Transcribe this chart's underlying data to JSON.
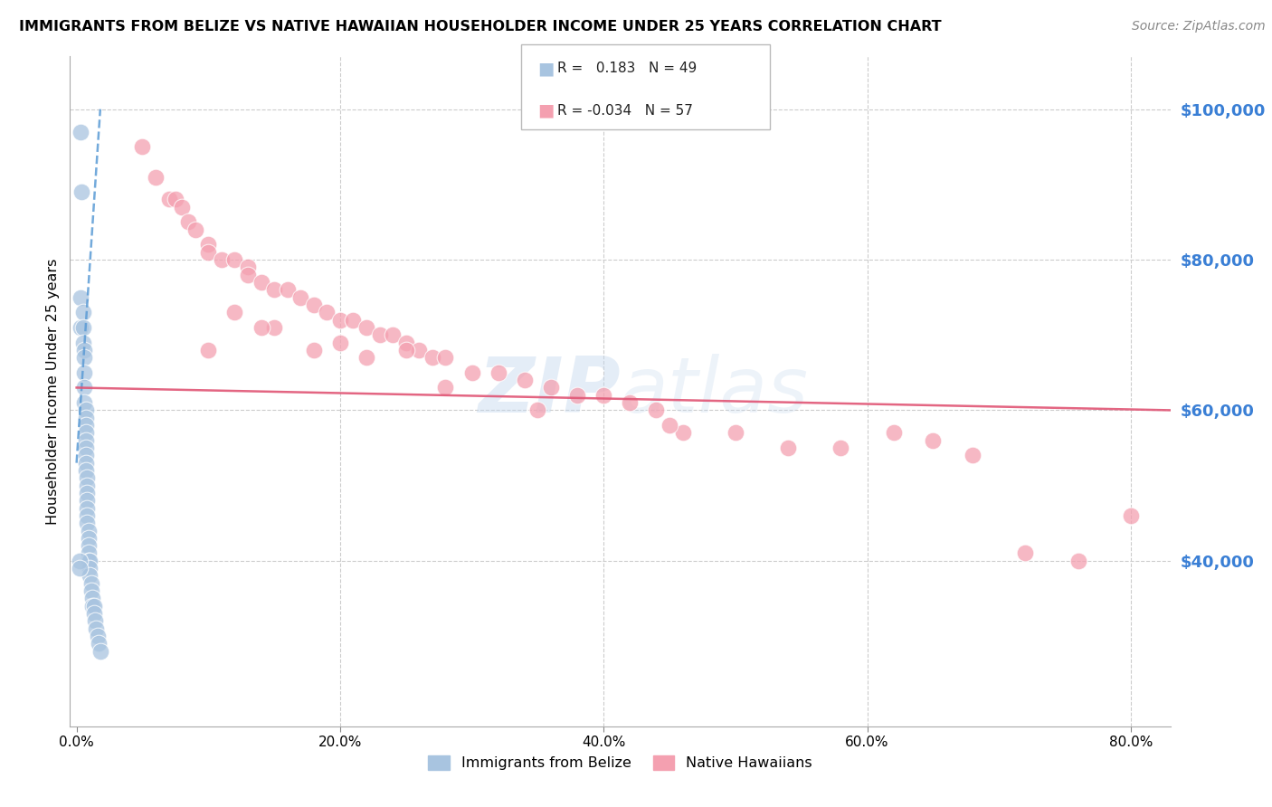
{
  "title": "IMMIGRANTS FROM BELIZE VS NATIVE HAWAIIAN HOUSEHOLDER INCOME UNDER 25 YEARS CORRELATION CHART",
  "source": "Source: ZipAtlas.com",
  "ylabel": "Householder Income Under 25 years",
  "xlabel_ticks": [
    "0.0%",
    "20.0%",
    "40.0%",
    "60.0%",
    "80.0%"
  ],
  "xlabel_vals": [
    0.0,
    0.2,
    0.4,
    0.6,
    0.8
  ],
  "ytick_labels": [
    "$40,000",
    "$60,000",
    "$80,000",
    "$100,000"
  ],
  "ytick_vals": [
    40000,
    60000,
    80000,
    100000
  ],
  "ylim": [
    18000,
    107000
  ],
  "xlim": [
    -0.005,
    0.83
  ],
  "legend_r_blue": "0.183",
  "legend_n_blue": "49",
  "legend_r_pink": "-0.034",
  "legend_n_pink": "57",
  "blue_color": "#a8c4e0",
  "pink_color": "#f4a0b0",
  "blue_line_color": "#5b9bd5",
  "pink_line_color": "#e05575",
  "belize_x": [
    0.003,
    0.004,
    0.003,
    0.003,
    0.005,
    0.005,
    0.005,
    0.006,
    0.006,
    0.006,
    0.006,
    0.006,
    0.007,
    0.007,
    0.007,
    0.007,
    0.007,
    0.007,
    0.007,
    0.007,
    0.007,
    0.008,
    0.008,
    0.008,
    0.008,
    0.008,
    0.008,
    0.008,
    0.009,
    0.009,
    0.009,
    0.009,
    0.009,
    0.01,
    0.01,
    0.01,
    0.011,
    0.011,
    0.012,
    0.012,
    0.013,
    0.013,
    0.014,
    0.015,
    0.016,
    0.017,
    0.018,
    0.002,
    0.002
  ],
  "belize_y": [
    97000,
    89000,
    75000,
    71000,
    73000,
    71000,
    69000,
    68000,
    67000,
    65000,
    63000,
    61000,
    60000,
    59000,
    58000,
    57000,
    56000,
    55000,
    54000,
    53000,
    52000,
    51000,
    50000,
    49000,
    48000,
    47000,
    46000,
    45000,
    44000,
    43000,
    42000,
    41000,
    40000,
    40000,
    39000,
    38000,
    37000,
    36000,
    35000,
    34000,
    34000,
    33000,
    32000,
    31000,
    30000,
    29000,
    28000,
    40000,
    39000
  ],
  "hawaiian_x": [
    0.05,
    0.06,
    0.07,
    0.075,
    0.08,
    0.085,
    0.09,
    0.1,
    0.1,
    0.11,
    0.12,
    0.13,
    0.13,
    0.14,
    0.15,
    0.16,
    0.17,
    0.18,
    0.19,
    0.2,
    0.21,
    0.22,
    0.23,
    0.24,
    0.25,
    0.26,
    0.27,
    0.28,
    0.3,
    0.32,
    0.34,
    0.36,
    0.38,
    0.4,
    0.42,
    0.44,
    0.46,
    0.5,
    0.54,
    0.58,
    0.62,
    0.65,
    0.68,
    0.72,
    0.76,
    0.8,
    0.1,
    0.15,
    0.2,
    0.25,
    0.12,
    0.14,
    0.18,
    0.22,
    0.28,
    0.35,
    0.45
  ],
  "hawaiian_y": [
    95000,
    91000,
    88000,
    88000,
    87000,
    85000,
    84000,
    82000,
    81000,
    80000,
    80000,
    79000,
    78000,
    77000,
    76000,
    76000,
    75000,
    74000,
    73000,
    72000,
    72000,
    71000,
    70000,
    70000,
    69000,
    68000,
    67000,
    67000,
    65000,
    65000,
    64000,
    63000,
    62000,
    62000,
    61000,
    60000,
    57000,
    57000,
    55000,
    55000,
    57000,
    56000,
    54000,
    41000,
    40000,
    46000,
    68000,
    71000,
    69000,
    68000,
    73000,
    71000,
    68000,
    67000,
    63000,
    60000,
    58000
  ],
  "blue_line_x": [
    0.0,
    0.018
  ],
  "blue_line_y": [
    53000,
    100000
  ],
  "pink_line_x": [
    0.0,
    0.83
  ],
  "pink_line_y": [
    63000,
    60000
  ]
}
